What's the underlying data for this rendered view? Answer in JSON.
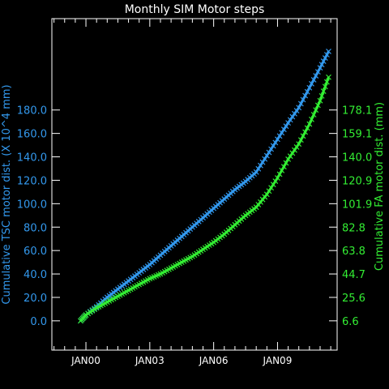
{
  "chart_data": {
    "type": "line",
    "title": "Monthly SIM Motor steps",
    "left_axis": {
      "label": "Cumulative TSC motor dist. (X 10^4 mm)",
      "color": "#3399ee",
      "ticks": [
        "0.0",
        "20.0",
        "40.0",
        "60.0",
        "80.0",
        "100.0",
        "120.0",
        "140.0",
        "160.0",
        "180.0"
      ],
      "tick_values": [
        0,
        20,
        40,
        60,
        80,
        100,
        120,
        140,
        160,
        180
      ],
      "ylim": [
        -25,
        258
      ]
    },
    "right_axis": {
      "label": "Cumulative FA motor dist. (mm)",
      "color": "#33ee33",
      "ticks": [
        "6.6",
        "25.6",
        "44.7",
        "63.8",
        "82.8",
        "101.9",
        "120.9",
        "140.0",
        "159.1",
        "178.1"
      ],
      "tick_values": [
        6.6,
        25.6,
        44.7,
        63.8,
        82.8,
        101.9,
        120.9,
        140.0,
        159.1,
        178.1
      ]
    },
    "x_axis": {
      "ticks": [
        "JAN00",
        "JAN03",
        "JAN06",
        "JAN09"
      ],
      "tick_values": [
        2000.0,
        2003.0,
        2006.0,
        2009.0
      ],
      "xlim": [
        1998.4,
        2011.8
      ]
    },
    "series": [
      {
        "color": "#3399ee",
        "marker": "x",
        "x": [
          1999.75,
          2000.0,
          2000.5,
          2001.0,
          2001.5,
          2002.0,
          2002.5,
          2003.0,
          2003.5,
          2004.0,
          2004.5,
          2005.0,
          2005.5,
          2006.0,
          2006.5,
          2007.0,
          2007.5,
          2008.0,
          2008.5,
          2009.0,
          2009.5,
          2010.0,
          2010.5,
          2011.0,
          2011.4
        ],
        "values": [
          0,
          5,
          12,
          20,
          27,
          34,
          41,
          48,
          56,
          64,
          72,
          80,
          88,
          96,
          104,
          112,
          119,
          127,
          141,
          155,
          169,
          182,
          199,
          216,
          230
        ]
      },
      {
        "color": "#33ee33",
        "marker": "x",
        "x": [
          1999.75,
          2000.0,
          2000.5,
          2001.0,
          2001.5,
          2002.0,
          2002.5,
          2003.0,
          2003.5,
          2004.0,
          2004.5,
          2005.0,
          2005.5,
          2006.0,
          2006.5,
          2007.0,
          2007.5,
          2008.0,
          2008.5,
          2009.0,
          2009.5,
          2010.0,
          2010.5,
          2011.0,
          2011.4
        ],
        "values": [
          0,
          5,
          11,
          16,
          21,
          26,
          31,
          36,
          40,
          45,
          50,
          55,
          61,
          67,
          74,
          82,
          90,
          97,
          108,
          122,
          138,
          151,
          168,
          188,
          208
        ]
      }
    ]
  }
}
